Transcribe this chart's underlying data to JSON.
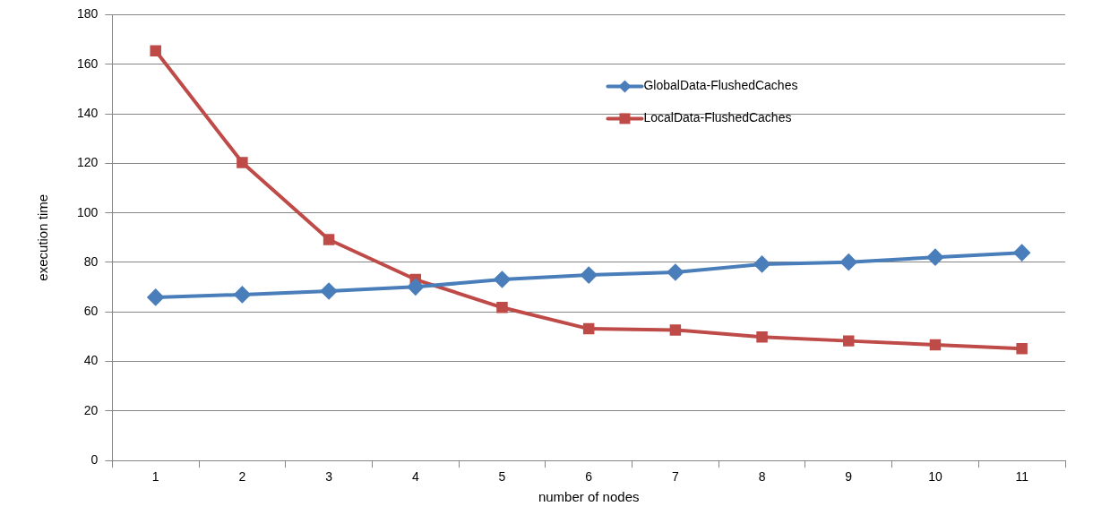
{
  "chart_data": {
    "type": "line",
    "xlabel": "number of nodes",
    "ylabel": "execution time",
    "categories": [
      "1",
      "2",
      "3",
      "4",
      "5",
      "6",
      "7",
      "8",
      "9",
      "10",
      "11"
    ],
    "series": [
      {
        "name": "GlobalData-FlushedCaches",
        "color": "#4a7ebb",
        "marker": "diamond",
        "values": [
          65.9,
          67.0,
          68.4,
          70.1,
          73.1,
          74.9,
          76.0,
          79.3,
          80.1,
          82.1,
          83.9
        ]
      },
      {
        "name": "LocalData-FlushedCaches",
        "color": "#be4b48",
        "marker": "square",
        "values": [
          165.4,
          120.3,
          89.2,
          73.1,
          61.8,
          53.2,
          52.7,
          49.9,
          48.3,
          46.7,
          45.2
        ]
      }
    ],
    "ylim": [
      0,
      180
    ],
    "yticks": [
      0,
      20,
      40,
      60,
      80,
      100,
      120,
      140,
      160,
      180
    ],
    "grid": "y",
    "legend": "top right",
    "line_style": "solid"
  }
}
